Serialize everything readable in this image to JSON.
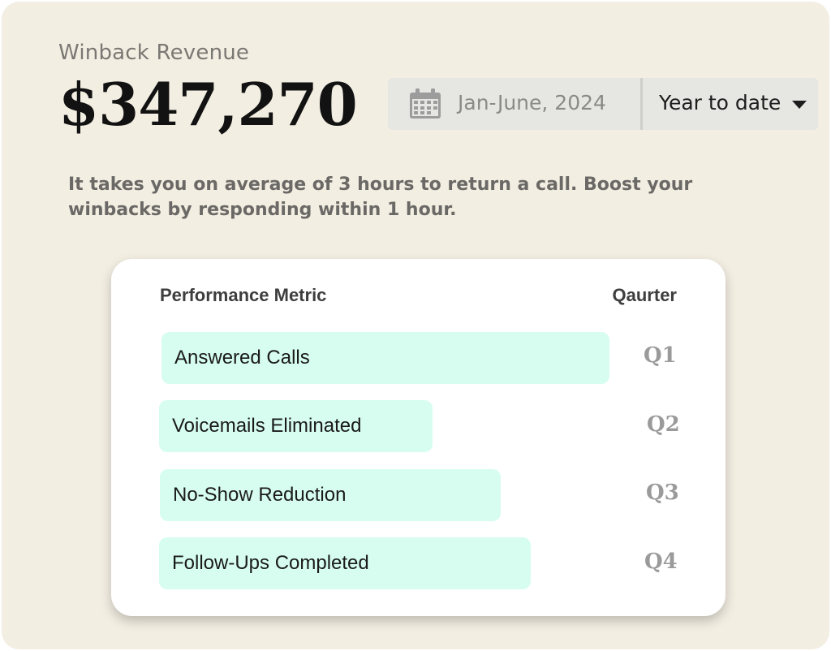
{
  "header": {
    "title": "Winback Revenue",
    "amount": "$347,270"
  },
  "date_filter": {
    "calendar_icon": "calendar-icon",
    "range_text": "Jan-June, 2024",
    "selected_option": "Year to date",
    "dropdown_icon": "caret-down-icon"
  },
  "insight": "It takes you on average of 3 hours to return a call. Boost your winbacks by responding within 1 hour.",
  "metrics": {
    "header_metric": "Performance Metric",
    "header_quarter": "Qaurter",
    "rows": [
      {
        "label": "Answered Calls",
        "quarter": "Q1"
      },
      {
        "label": "Voicemails Eliminated",
        "quarter": "Q2"
      },
      {
        "label": "No-Show Reduction",
        "quarter": "Q3"
      },
      {
        "label": "Follow-Ups Completed",
        "quarter": "Q4"
      }
    ]
  },
  "chart_data": {
    "type": "bar",
    "categories": [
      "Answered Calls",
      "Voicemails Eliminated",
      "No-Show Reduction",
      "Follow-Ups Completed"
    ],
    "values": [
      1.0,
      0.61,
      0.76,
      0.83
    ],
    "quarters": [
      "Q1",
      "Q2",
      "Q3",
      "Q4"
    ]
  },
  "colors": {
    "background": "#f3eee2",
    "bar_fill": "#d6fdf0",
    "card": "#ffffff",
    "amount": "#121212"
  }
}
